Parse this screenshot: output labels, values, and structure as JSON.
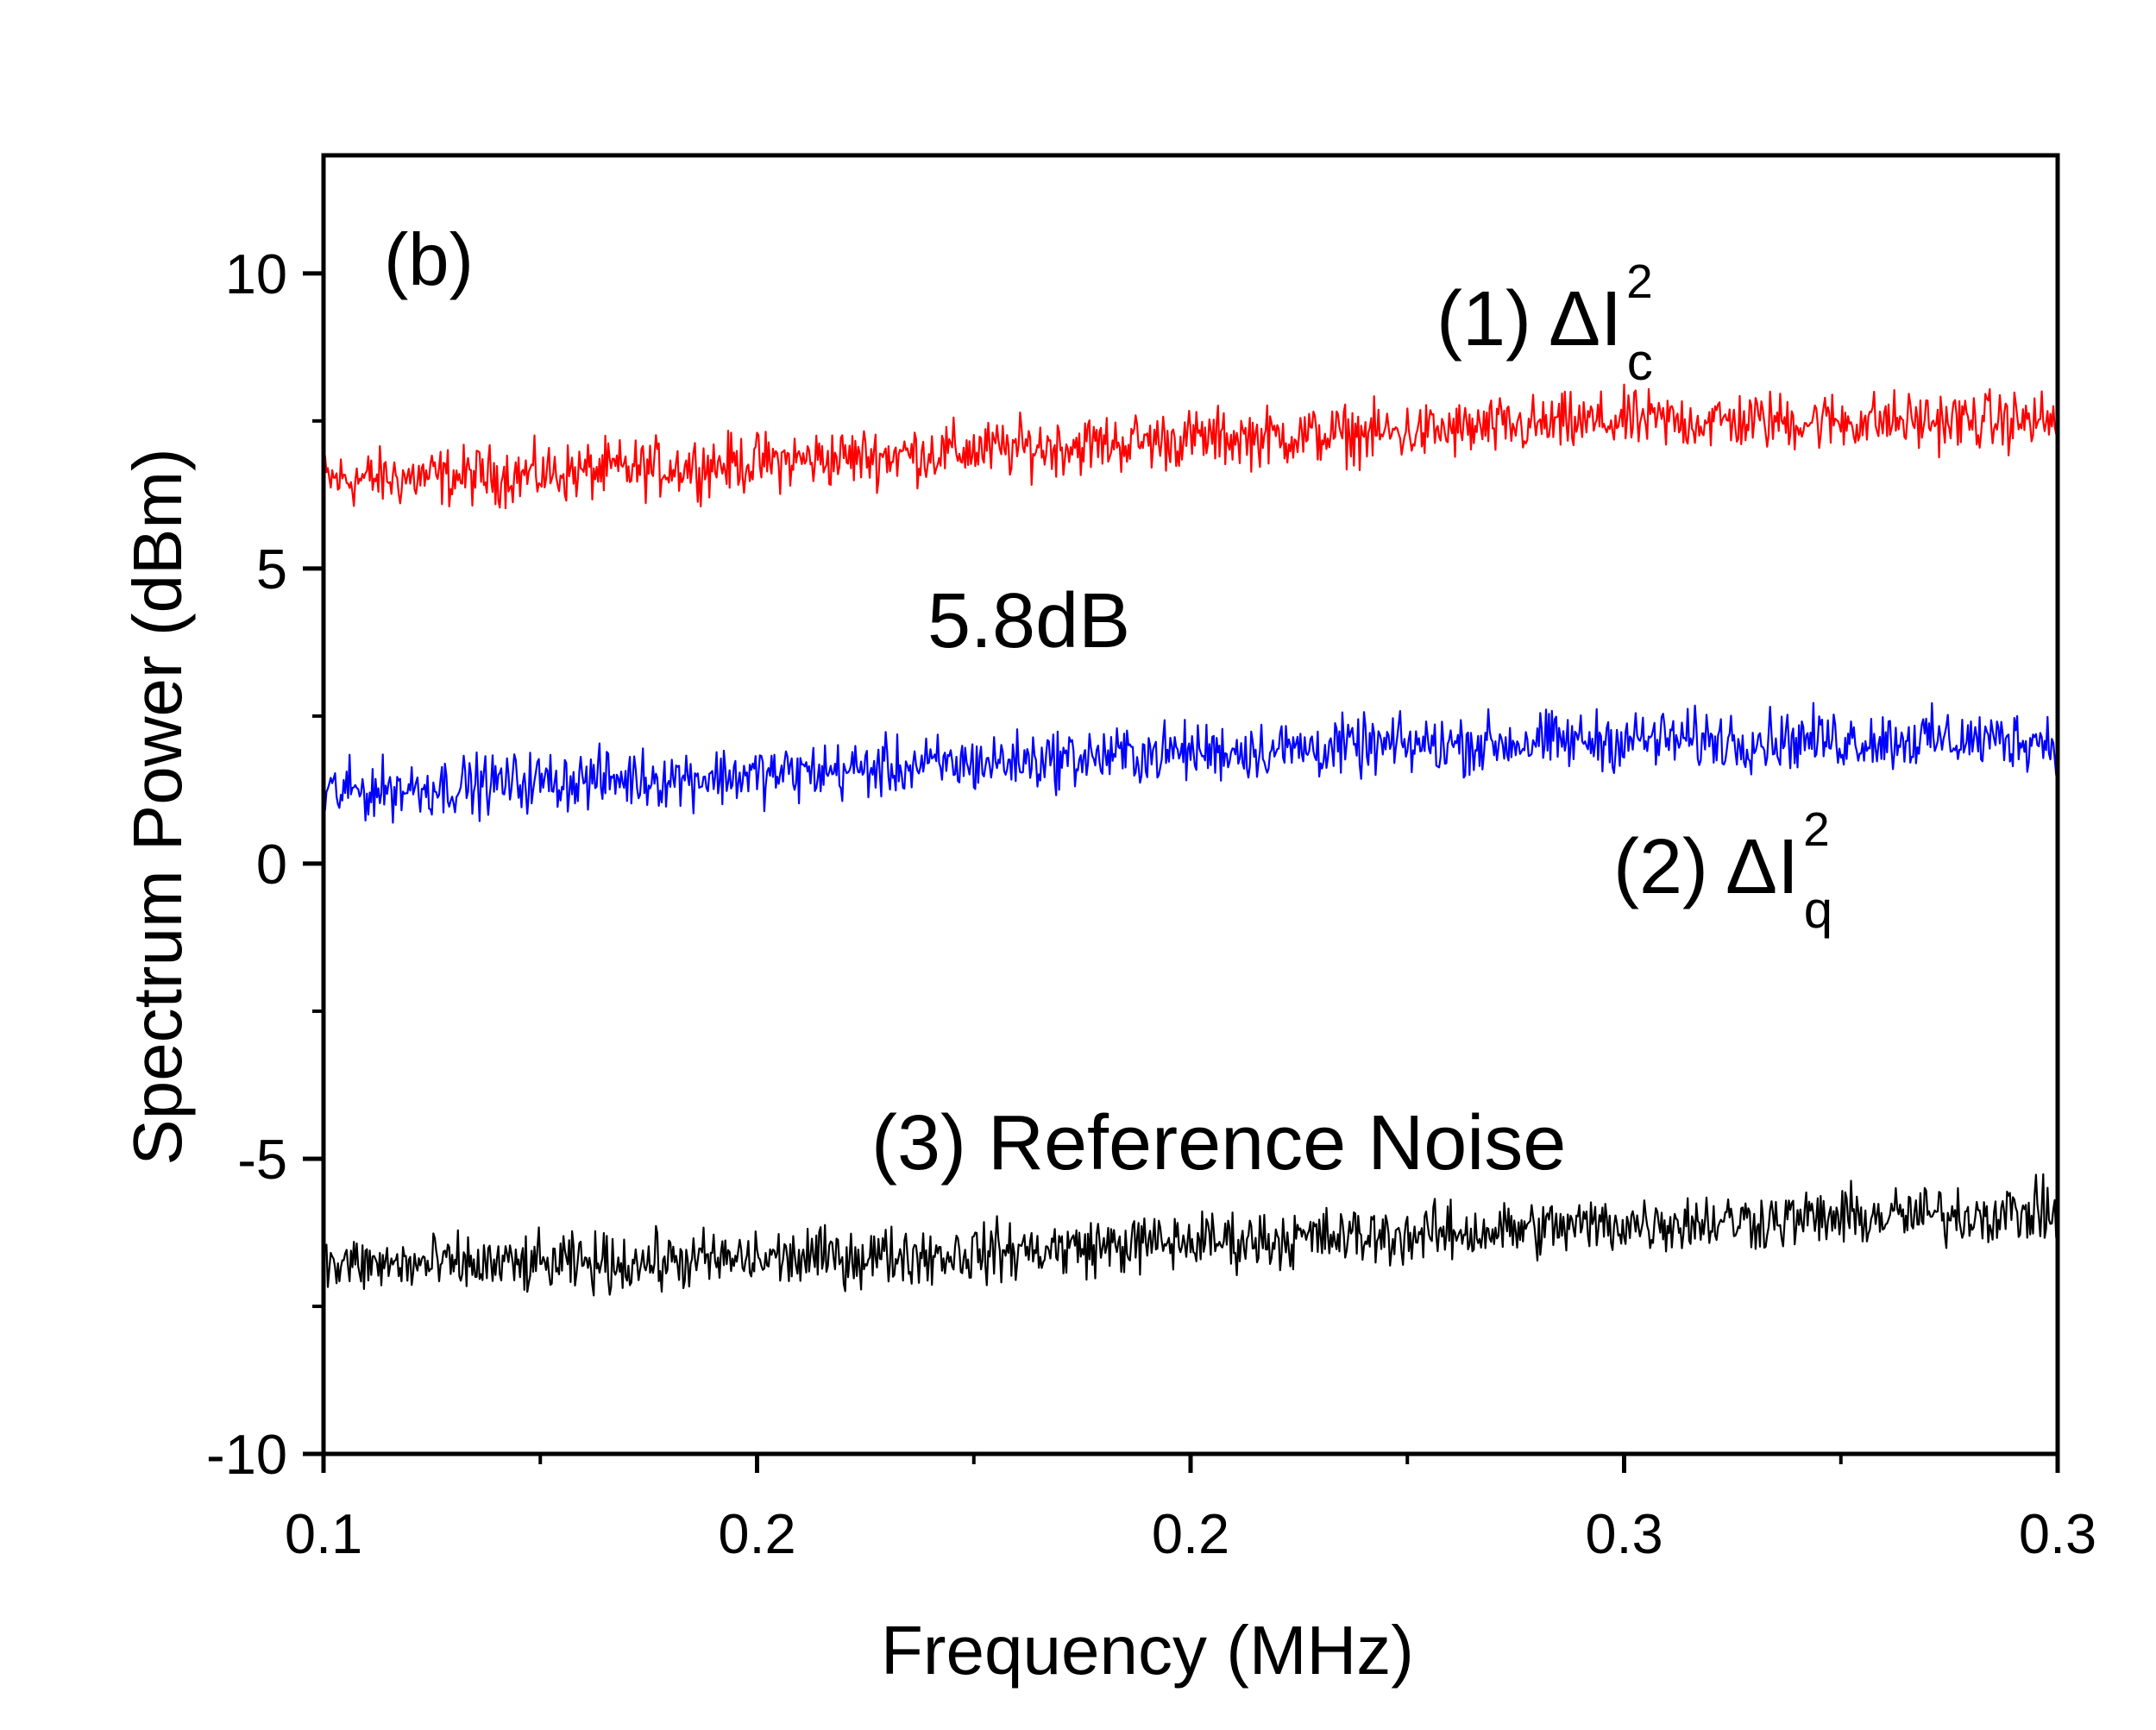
{
  "chart_data": {
    "type": "line",
    "panel_label": "(b)",
    "xlabel": "Frequency (MHz)",
    "ylabel": "Spectrum Power (dBm)",
    "xlim": [
      0.1,
      0.3
    ],
    "ylim": [
      -10,
      12
    ],
    "x_tick_labels": [
      "0.1",
      "0.2",
      "0.2",
      "0.3",
      "0.3"
    ],
    "y_ticks": [
      -10,
      -5,
      0,
      5,
      10
    ],
    "y_tick_labels": [
      "-10",
      "-5",
      "0",
      "5",
      "10"
    ],
    "x": [
      0.1,
      0.125,
      0.15,
      0.175,
      0.2,
      0.225,
      0.25,
      0.275,
      0.3
    ],
    "series": [
      {
        "label_prefix": "(1) ΔI",
        "label_sup": "2",
        "label_sub": "c",
        "color": "#ff0000",
        "values": [
          6.5,
          6.6,
          6.8,
          7.0,
          7.2,
          7.3,
          7.5,
          7.5,
          7.5
        ],
        "noise_amplitude": 0.35
      },
      {
        "label_prefix": "(2) ΔI",
        "label_sup": "2",
        "label_sub": "q",
        "color": "#0000ff",
        "values": [
          1.2,
          1.4,
          1.5,
          1.7,
          1.9,
          2.0,
          2.1,
          2.1,
          2.1
        ],
        "noise_amplitude": 0.35
      },
      {
        "label_prefix": "(3) Reference Noise",
        "label_sup": "",
        "label_sub": "",
        "color": "#000000",
        "values": [
          -6.8,
          -6.8,
          -6.7,
          -6.6,
          -6.4,
          -6.3,
          -6.1,
          -6.0,
          -5.9
        ],
        "noise_amplitude": 0.35
      }
    ],
    "annotations": [
      {
        "text": "5.8dB"
      }
    ],
    "grid": false,
    "legend": "none"
  }
}
